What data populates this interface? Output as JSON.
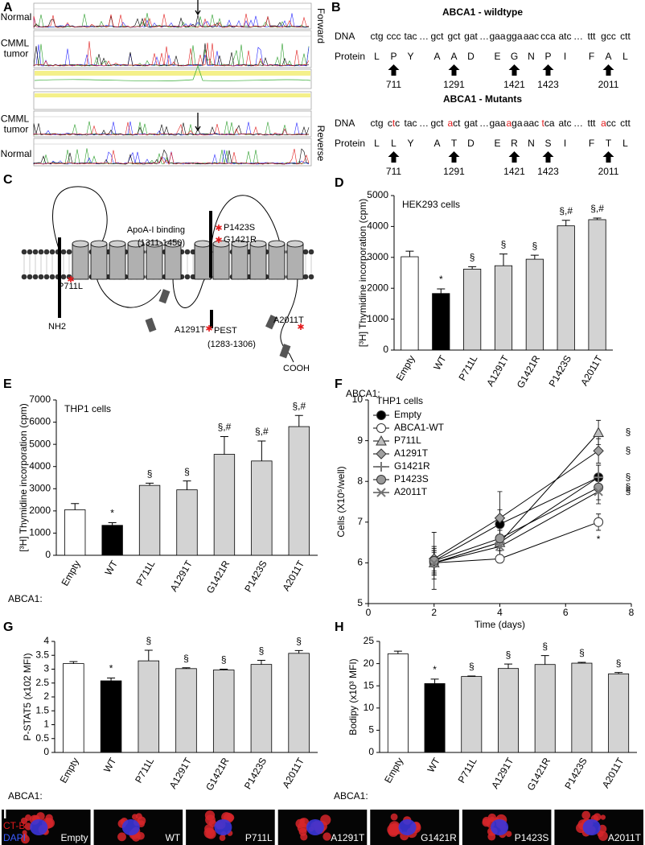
{
  "panel_a": {
    "label": "A",
    "rows": [
      "Normal",
      "CMML tumor",
      "CMML tumor",
      "Normal"
    ],
    "directions": [
      "Forward",
      "Reverse"
    ]
  },
  "panel_b": {
    "label": "B",
    "wildtype": {
      "title": "ABCA1 - wildtype",
      "dna_label": "DNA",
      "protein_label": "Protein",
      "codons": [
        "ctg",
        "ccc",
        "tac",
        "…",
        "gct",
        "gct",
        "gat",
        "…",
        "gaa",
        "gga",
        "aac",
        "cca",
        "atc",
        "…",
        "ttt",
        "gcc",
        "ctt"
      ],
      "protein": [
        "L",
        "P",
        "Y",
        "A",
        "A",
        "D",
        "E",
        "G",
        "N",
        "P",
        "I",
        "F",
        "A",
        "L"
      ]
    },
    "mutants": {
      "title": "ABCA1 - Mutants",
      "dna_label": "DNA",
      "protein_label": "Protein",
      "codons": [
        "ctg",
        "ctc",
        "tac",
        "…",
        "gct",
        "act",
        "gat",
        "…",
        "gaa",
        "aga",
        "aac",
        "tca",
        "atc",
        "…",
        "ttt",
        "acc",
        "ctt"
      ],
      "protein": [
        "L",
        "L",
        "Y",
        "A",
        "T",
        "D",
        "E",
        "R",
        "N",
        "S",
        "I",
        "F",
        "T",
        "L"
      ]
    },
    "positions": [
      711,
      1291,
      1421,
      1423,
      2011
    ]
  },
  "panel_c": {
    "label": "C",
    "labels": [
      "ApoA-I binding",
      "(1311-1450)",
      "P1423S",
      "G1421R",
      "P711L",
      "NH2",
      "A1291T",
      "PEST",
      "(1283-1306)",
      "A2011T",
      "COOH"
    ]
  },
  "chart_data": [
    {
      "type": "bar",
      "label": "D",
      "title": "HEK293 cells",
      "y_label": "[³H] Thymidine incorporation (cpm)",
      "x_label": "ABCA1:",
      "categories": [
        "Empty",
        "WT",
        "P711L",
        "A1291T",
        "G1421R",
        "P1423S",
        "A2011T"
      ],
      "values": [
        3020,
        1830,
        2620,
        2730,
        2940,
        4020,
        4220
      ],
      "errors": [
        180,
        150,
        80,
        380,
        130,
        180,
        50
      ],
      "annotations": [
        null,
        "*",
        "§",
        "§",
        "§",
        "§,#",
        "§,#"
      ],
      "colors": [
        "#ffffff",
        "#000000",
        "#d3d3d3",
        "#d3d3d3",
        "#d3d3d3",
        "#d3d3d3",
        "#d3d3d3"
      ],
      "ylim": [
        0,
        5000
      ],
      "yticks": [
        0,
        1000,
        2000,
        3000,
        4000,
        5000
      ]
    },
    {
      "type": "bar",
      "label": "E",
      "title": "THP1 cells",
      "y_label": "[³H] Thymidine incorporation (cpm)",
      "x_label": "ABCA1:",
      "categories": [
        "Empty",
        "WT",
        "P711L",
        "A1291T",
        "G1421R",
        "P1423S",
        "A2011T"
      ],
      "values": [
        2050,
        1350,
        3150,
        2950,
        4550,
        4250,
        5800
      ],
      "errors": [
        280,
        120,
        100,
        400,
        800,
        900,
        500
      ],
      "annotations": [
        null,
        "*",
        "§",
        "§",
        "§,#",
        "§,#",
        "§,#"
      ],
      "colors": [
        "#ffffff",
        "#000000",
        "#d3d3d3",
        "#d3d3d3",
        "#d3d3d3",
        "#d3d3d3",
        "#d3d3d3"
      ],
      "ylim": [
        0,
        7000
      ],
      "yticks": [
        0,
        1000,
        2000,
        3000,
        4000,
        5000,
        6000,
        7000
      ]
    },
    {
      "type": "line",
      "label": "F",
      "title": "THP1 cells",
      "y_label": "Cells (X10⁵/well)",
      "x_label": "Time (days)",
      "x": [
        2,
        4,
        7
      ],
      "series": [
        {
          "name": "Empty",
          "marker": "circle",
          "color": "#000000",
          "values": [
            6.05,
            6.95,
            8.1
          ],
          "errors": [
            0.7,
            0.8,
            0.3
          ],
          "annotation": null
        },
        {
          "name": "ABCA1-WT",
          "marker": "circle",
          "color": "#ffffff",
          "values": [
            6.0,
            6.1,
            7.0
          ],
          "errors": [
            0.25,
            0.1,
            0.2
          ],
          "annotation": "*"
        },
        {
          "name": "P711L",
          "marker": "triangle",
          "color": "#bdbdbd",
          "values": [
            6.0,
            6.5,
            9.2
          ],
          "errors": [
            0.3,
            0.2,
            0.3
          ],
          "annotation": "§"
        },
        {
          "name": "A1291T",
          "marker": "diamond",
          "color": "#a0a0a0",
          "values": [
            6.1,
            7.1,
            8.75
          ],
          "errors": [
            0.3,
            0.2,
            0.3
          ],
          "annotation": "§"
        },
        {
          "name": "G1421R",
          "marker": "plus",
          "color": "#777777",
          "values": [
            6.0,
            6.5,
            8.1
          ],
          "errors": [
            0.4,
            0.2,
            0.3
          ],
          "annotation": "§"
        },
        {
          "name": "P1423S",
          "marker": "circle",
          "color": "#999999",
          "values": [
            6.05,
            6.6,
            7.85
          ],
          "errors": [
            0.3,
            0.2,
            0.3
          ],
          "annotation": "§"
        },
        {
          "name": "A2011T",
          "marker": "x",
          "color": "#777777",
          "values": [
            6.0,
            6.4,
            7.75
          ],
          "errors": [
            0.3,
            0.2,
            0.3
          ],
          "annotation": "§"
        }
      ],
      "xlim": [
        0,
        8
      ],
      "xticks": [
        0,
        2,
        4,
        6,
        8
      ],
      "ylim": [
        5,
        10
      ],
      "yticks": [
        5,
        6,
        7,
        8,
        9,
        10
      ]
    },
    {
      "type": "bar",
      "label": "G",
      "title": null,
      "y_label": "P-STAT5 (x102 MFI)",
      "x_label": "ABCA1:",
      "categories": [
        "Empty",
        "WT",
        "P711L",
        "A1291T",
        "G1421R",
        "P1423S",
        "A2011T"
      ],
      "values": [
        3.2,
        2.58,
        3.3,
        3.02,
        2.97,
        3.17,
        3.57
      ],
      "errors": [
        0.07,
        0.1,
        0.38,
        0.03,
        0.03,
        0.15,
        0.1
      ],
      "annotations": [
        null,
        "*",
        "§",
        "§",
        "§",
        "§",
        "§"
      ],
      "colors": [
        "#ffffff",
        "#000000",
        "#d3d3d3",
        "#d3d3d3",
        "#d3d3d3",
        "#d3d3d3",
        "#d3d3d3"
      ],
      "ylim": [
        0,
        4
      ],
      "yticks": [
        0,
        0.5,
        1,
        1.5,
        2,
        2.5,
        3,
        3.5,
        4
      ]
    },
    {
      "type": "bar",
      "label": "H",
      "title": null,
      "y_label": "Bodipy (x10³ MFI)",
      "x_label": "ABCA1:",
      "categories": [
        "Empty",
        "WT",
        "P711L",
        "A1291T",
        "G1421R",
        "P1423S",
        "A2011T"
      ],
      "values": [
        22.2,
        15.5,
        17.1,
        18.9,
        19.8,
        20.1,
        17.7
      ],
      "errors": [
        0.6,
        1.0,
        0.1,
        1.0,
        2.0,
        0.2,
        0.3
      ],
      "annotations": [
        null,
        "*",
        "§",
        "§",
        "§",
        "§",
        "§"
      ],
      "colors": [
        "#ffffff",
        "#000000",
        "#d3d3d3",
        "#d3d3d3",
        "#d3d3d3",
        "#d3d3d3",
        "#d3d3d3"
      ],
      "ylim": [
        0,
        25
      ],
      "yticks": [
        0,
        5,
        10,
        15,
        20,
        25
      ]
    }
  ],
  "panel_i": {
    "label": "I",
    "stains": [
      "CT-B",
      "DAPI"
    ],
    "conditions": [
      "Empty",
      "WT",
      "P711L",
      "A1291T",
      "G1421R",
      "P1423S",
      "A2011T"
    ]
  }
}
